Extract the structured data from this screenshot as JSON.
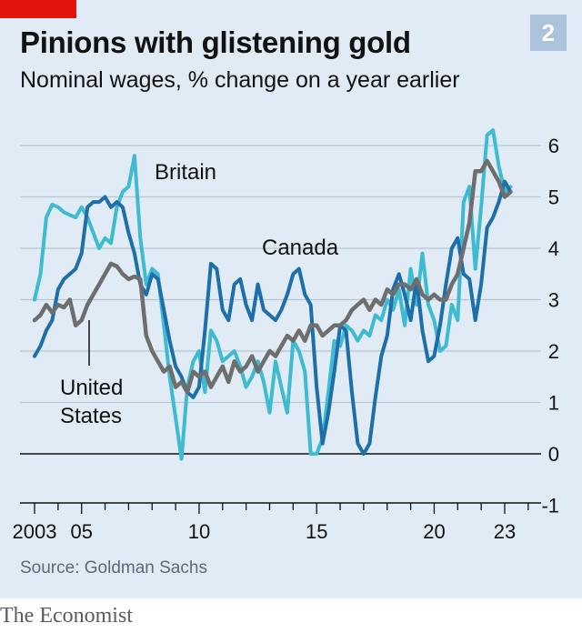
{
  "header": {
    "title": "Pinions with glistening gold",
    "subtitle": "Nominal wages, % change on a year earlier",
    "badge": "2"
  },
  "footer": {
    "source": "Source: Goldman Sachs",
    "brand": "The Economist"
  },
  "colors": {
    "background": "#e0ebf5",
    "britain": "#3ebbd1",
    "canada": "#1d6fa9",
    "united_states": "#6e6e6e",
    "brand_red": "#e3120b"
  },
  "chart_data": {
    "type": "line",
    "ylim": [
      -1,
      6
    ],
    "xlim": [
      2002.5,
      2024.5
    ],
    "yticks": [
      "6",
      "5",
      "4",
      "3",
      "2",
      "1",
      "0",
      "-1"
    ],
    "ytick_values": [
      6,
      5,
      4,
      3,
      2,
      1,
      0,
      -1
    ],
    "xtick_labels": [
      {
        "label": "2003",
        "x": 2003
      },
      {
        "label": "05",
        "x": 2005
      },
      {
        "label": "10",
        "x": 2010
      },
      {
        "label": "15",
        "x": 2015
      },
      {
        "label": "20",
        "x": 2020
      },
      {
        "label": "23",
        "x": 2023
      }
    ],
    "series": [
      {
        "name": "Britain",
        "x": [
          2003,
          2003.25,
          2003.5,
          2003.75,
          2004,
          2004.25,
          2004.5,
          2004.75,
          2005,
          2005.25,
          2005.5,
          2005.75,
          2006,
          2006.25,
          2006.5,
          2006.75,
          2007,
          2007.25,
          2007.5,
          2007.75,
          2008,
          2008.25,
          2008.5,
          2008.75,
          2009,
          2009.25,
          2009.5,
          2009.75,
          2010,
          2010.25,
          2010.5,
          2010.75,
          2011,
          2011.25,
          2011.5,
          2011.75,
          2012,
          2012.25,
          2012.5,
          2012.75,
          2013,
          2013.25,
          2013.5,
          2013.75,
          2014,
          2014.25,
          2014.5,
          2014.75,
          2015,
          2015.25,
          2015.5,
          2015.75,
          2016,
          2016.25,
          2016.5,
          2016.75,
          2017,
          2017.25,
          2017.5,
          2017.75,
          2018,
          2018.25,
          2018.5,
          2018.75,
          2019,
          2019.25,
          2019.5,
          2019.75,
          2020,
          2020.25,
          2020.5,
          2020.75,
          2021,
          2021.25,
          2021.5,
          2021.75,
          2022,
          2022.25,
          2022.5,
          2022.75,
          2023,
          2023.25
        ],
        "values": [
          3.0,
          3.5,
          4.6,
          4.85,
          4.8,
          4.7,
          4.65,
          4.6,
          4.8,
          4.6,
          4.3,
          4.0,
          4.2,
          4.1,
          4.8,
          5.1,
          5.2,
          5.8,
          4.2,
          3.3,
          3.6,
          3.5,
          2.5,
          1.5,
          0.7,
          -0.1,
          1.3,
          1.8,
          2.0,
          1.2,
          2.4,
          2.2,
          1.8,
          1.9,
          2.0,
          1.7,
          1.3,
          1.5,
          1.8,
          1.4,
          0.8,
          1.8,
          1.3,
          0.8,
          2.2,
          2.0,
          1.6,
          0.0,
          0.0,
          0.3,
          1.2,
          2.2,
          2.1,
          2.5,
          2.4,
          2.2,
          2.4,
          2.3,
          2.7,
          2.6,
          3.0,
          2.8,
          3.2,
          2.5,
          3.6,
          2.9,
          3.9,
          2.9,
          2.6,
          2.0,
          2.1,
          2.9,
          2.6,
          4.9,
          5.2,
          3.6,
          4.8,
          6.2,
          6.3,
          5.6,
          5.1,
          5.2
        ],
        "label_text": "Britain"
      },
      {
        "name": "Canada",
        "x": [
          2003,
          2003.25,
          2003.5,
          2003.75,
          2004,
          2004.25,
          2004.5,
          2004.75,
          2005,
          2005.25,
          2005.5,
          2005.75,
          2006,
          2006.25,
          2006.5,
          2006.75,
          2007,
          2007.25,
          2007.5,
          2007.75,
          2008,
          2008.25,
          2008.5,
          2008.75,
          2009,
          2009.25,
          2009.5,
          2009.75,
          2010,
          2010.25,
          2010.5,
          2010.75,
          2011,
          2011.25,
          2011.5,
          2011.75,
          2012,
          2012.25,
          2012.5,
          2012.75,
          2013,
          2013.25,
          2013.5,
          2013.75,
          2014,
          2014.25,
          2014.5,
          2014.75,
          2015,
          2015.25,
          2015.5,
          2015.75,
          2016,
          2016.25,
          2016.5,
          2016.75,
          2017,
          2017.25,
          2017.5,
          2017.75,
          2018,
          2018.25,
          2018.5,
          2018.75,
          2019,
          2019.25,
          2019.5,
          2019.75,
          2020,
          2020.25,
          2020.5,
          2020.75,
          2021,
          2021.25,
          2021.5,
          2021.75,
          2022,
          2022.25,
          2022.5,
          2022.75,
          2023,
          2023.25
        ],
        "values": [
          1.9,
          2.1,
          2.4,
          2.6,
          3.2,
          3.4,
          3.5,
          3.6,
          3.9,
          4.8,
          4.9,
          4.9,
          5.0,
          4.8,
          4.9,
          4.8,
          4.3,
          3.9,
          3.3,
          3.1,
          3.5,
          3.4,
          2.8,
          2.2,
          1.7,
          1.5,
          1.2,
          1.1,
          1.3,
          2.4,
          3.7,
          3.6,
          2.8,
          2.6,
          3.3,
          3.4,
          2.9,
          2.6,
          3.3,
          2.8,
          2.7,
          2.6,
          2.8,
          3.1,
          3.5,
          3.6,
          3.1,
          2.9,
          1.3,
          0.2,
          0.8,
          1.6,
          2.5,
          2.4,
          1.2,
          0.2,
          0.0,
          0.2,
          1.1,
          1.9,
          2.3,
          3.2,
          3.5,
          3.1,
          2.6,
          3.4,
          2.4,
          1.8,
          1.9,
          2.5,
          3.3,
          4.0,
          4.2,
          3.5,
          3.4,
          2.6,
          3.3,
          4.4,
          4.6,
          4.9,
          5.3,
          5.1
        ],
        "label_text": "Canada"
      },
      {
        "name": "United States",
        "x": [
          2003,
          2003.25,
          2003.5,
          2003.75,
          2004,
          2004.25,
          2004.5,
          2004.75,
          2005,
          2005.25,
          2005.5,
          2005.75,
          2006,
          2006.25,
          2006.5,
          2006.75,
          2007,
          2007.25,
          2007.5,
          2007.75,
          2008,
          2008.25,
          2008.5,
          2008.75,
          2009,
          2009.25,
          2009.5,
          2009.75,
          2010,
          2010.25,
          2010.5,
          2010.75,
          2011,
          2011.25,
          2011.5,
          2011.75,
          2012,
          2012.25,
          2012.5,
          2012.75,
          2013,
          2013.25,
          2013.5,
          2013.75,
          2014,
          2014.25,
          2014.5,
          2014.75,
          2015,
          2015.25,
          2015.5,
          2015.75,
          2016,
          2016.25,
          2016.5,
          2016.75,
          2017,
          2017.25,
          2017.5,
          2017.75,
          2018,
          2018.25,
          2018.5,
          2018.75,
          2019,
          2019.25,
          2019.5,
          2019.75,
          2020,
          2020.25,
          2020.5,
          2020.75,
          2021,
          2021.25,
          2021.5,
          2021.75,
          2022,
          2022.25,
          2022.5,
          2022.75,
          2023,
          2023.25
        ],
        "values": [
          2.6,
          2.7,
          2.9,
          2.75,
          2.9,
          2.85,
          3.0,
          2.5,
          2.6,
          2.9,
          3.1,
          3.3,
          3.5,
          3.7,
          3.65,
          3.5,
          3.4,
          3.45,
          3.4,
          2.3,
          2.0,
          1.8,
          1.6,
          1.7,
          1.3,
          1.4,
          1.2,
          1.6,
          1.5,
          1.6,
          1.3,
          1.5,
          1.7,
          1.4,
          1.8,
          1.6,
          1.7,
          1.9,
          1.6,
          1.8,
          2.0,
          1.9,
          2.1,
          2.3,
          2.2,
          2.4,
          2.2,
          2.5,
          2.5,
          2.3,
          2.4,
          2.5,
          2.5,
          2.6,
          2.8,
          2.9,
          3.0,
          2.8,
          3.0,
          2.9,
          3.2,
          3.1,
          3.3,
          3.3,
          3.2,
          3.4,
          3.1,
          3.0,
          3.1,
          3.0,
          3.0,
          3.3,
          3.5,
          4.0,
          4.5,
          5.5,
          5.5,
          5.7,
          5.5,
          5.3,
          5.0,
          5.1
        ],
        "label_text": [
          "United",
          "States"
        ]
      }
    ]
  }
}
